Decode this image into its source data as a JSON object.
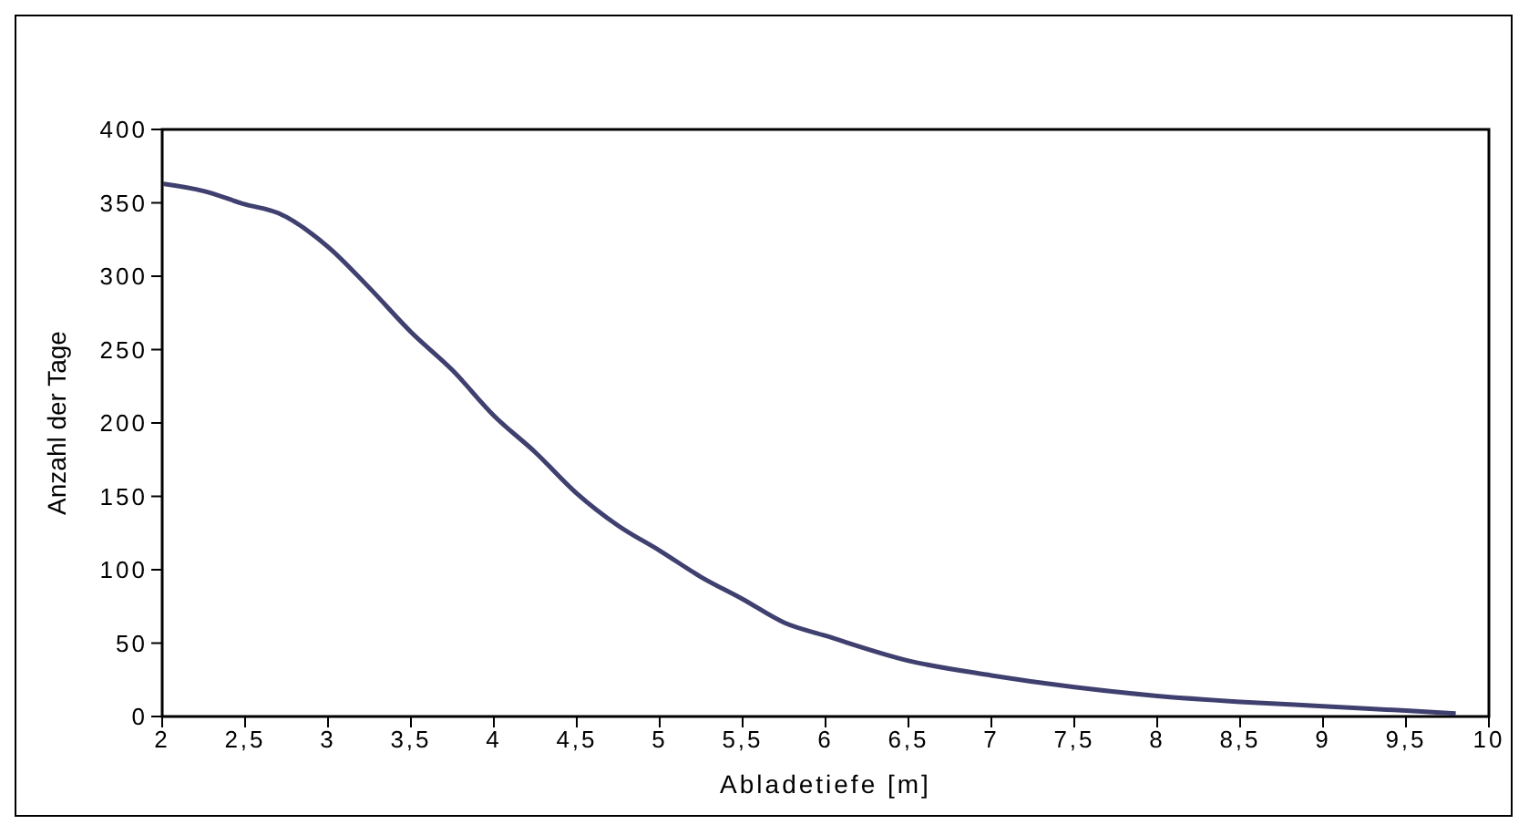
{
  "chart_data": {
    "type": "line",
    "xlabel": "Abladetiefe [m]",
    "ylabel": "Anzahl der Tage",
    "x": [
      2,
      2.25,
      2.5,
      2.7,
      3,
      3.25,
      3.5,
      3.75,
      4,
      4.25,
      4.5,
      4.75,
      5,
      5.25,
      5.5,
      5.75,
      6,
      6.5,
      7,
      7.5,
      8,
      8.5,
      9,
      9.5,
      9.8
    ],
    "series": [
      {
        "color": "#404070",
        "values": [
          363,
          358,
          349,
          343,
          320,
          292,
          262,
          236,
          205,
          180,
          152,
          130,
          113,
          95,
          80,
          64,
          55,
          38,
          28,
          20,
          14,
          10,
          7,
          4,
          2
        ]
      }
    ],
    "xlim": [
      2,
      10
    ],
    "xticks": [
      2,
      {
        "value": 2.5,
        "label": "2,5"
      },
      3,
      {
        "value": 3.5,
        "label": "3,5"
      },
      4,
      {
        "value": 4.5,
        "label": "4,5"
      },
      5,
      {
        "value": 5.5,
        "label": "5,5"
      },
      6,
      {
        "value": 6.5,
        "label": "6,5"
      },
      7,
      {
        "value": 7.5,
        "label": "7,5"
      },
      8,
      {
        "value": 8.5,
        "label": "8,5"
      },
      9,
      {
        "value": 9.5,
        "label": "9,5"
      },
      10
    ],
    "ylim": [
      0,
      400
    ],
    "yticks": [
      0,
      50,
      100,
      150,
      200,
      250,
      300,
      350,
      400
    ],
    "grid": false,
    "legend": false,
    "marker": "none",
    "line_style": "solid"
  }
}
